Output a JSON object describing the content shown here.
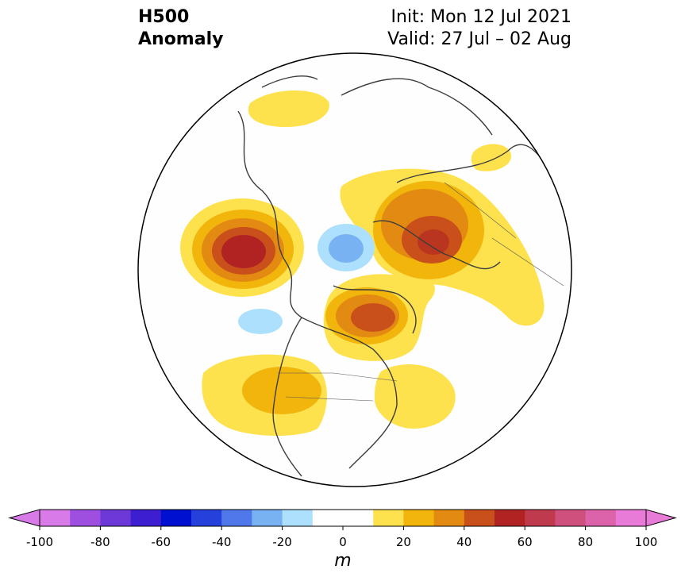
{
  "title": {
    "line1": "H500",
    "line2": "Anomaly"
  },
  "init_text": "Init: Mon 12 Jul 2021",
  "valid_text": "Valid: 27 Jul – 02 Aug",
  "colorbar": {
    "unit": "m",
    "tick_labels": [
      "-100",
      "-80",
      "-60",
      "-40",
      "-20",
      "0",
      "20",
      "40",
      "60",
      "80",
      "100"
    ],
    "colors": [
      "#d87be8",
      "#9f4fe0",
      "#6d38d8",
      "#3d1ed0",
      "#0010d0",
      "#2640dc",
      "#5078ea",
      "#78b2f2",
      "#ade0fc",
      "#ffffff",
      "#ffffff",
      "#fde24e",
      "#f2b50c",
      "#e38a12",
      "#c9501b",
      "#b12323",
      "#c03a4e",
      "#cf4f7d",
      "#dc63aa",
      "#e87ad8"
    ]
  },
  "anomaly_blobs": [
    {
      "name": "ne-pacific-high",
      "level": 60,
      "color": "#fde24e"
    },
    {
      "name": "northeast-canada-high",
      "level": 50,
      "color": "#fde24e"
    },
    {
      "name": "siberia-high",
      "level": 50,
      "color": "#fde24e"
    },
    {
      "name": "western-us-ridge",
      "level": 30,
      "color": "#fde24e"
    },
    {
      "name": "eastern-us-ridge",
      "level": 10,
      "color": "#fde24e"
    },
    {
      "name": "arctic-low",
      "level": -30,
      "color": "#78b2f2"
    },
    {
      "name": "alaska-low",
      "level": -10,
      "color": "#ade0fc"
    }
  ]
}
